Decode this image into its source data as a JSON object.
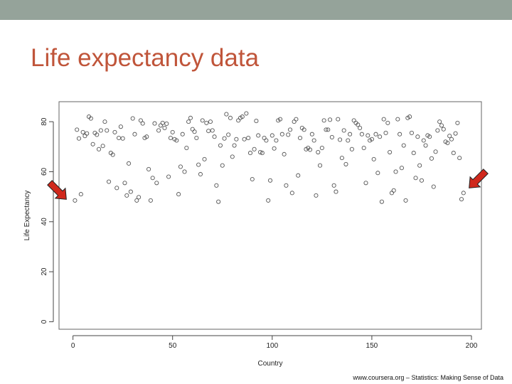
{
  "slide": {
    "title": "Life expectancy data",
    "footer": "www.coursera.org – Statistics: Making Sense of Data",
    "colors": {
      "topbar": "#95a39a",
      "title": "#c0553a",
      "arrow": "#d0281c",
      "points": "#555555"
    },
    "icons": {
      "left_marker": "red-arrow-icon",
      "right_marker": "red-arrow-icon"
    }
  },
  "chart_data": {
    "type": "scatter",
    "title": "",
    "xlabel": "Country",
    "ylabel": "Life Expectancy",
    "xlim": [
      -7,
      205
    ],
    "ylim": [
      -3,
      88
    ],
    "xticks": [
      0,
      50,
      100,
      150,
      200
    ],
    "yticks": [
      0,
      20,
      40,
      60,
      80
    ],
    "grid": false,
    "legend": "none",
    "series": [
      {
        "values": [
          [
            1,
            48.5
          ],
          [
            2,
            76.8
          ],
          [
            3,
            73.3
          ],
          [
            4,
            51
          ],
          [
            5,
            75.8
          ],
          [
            6,
            74.3
          ],
          [
            7,
            75.3
          ],
          [
            8,
            82
          ],
          [
            9,
            81.3
          ],
          [
            10,
            71
          ],
          [
            11,
            75.5
          ],
          [
            12,
            74.8
          ],
          [
            13,
            69
          ],
          [
            14,
            76.5
          ],
          [
            15,
            70.3
          ],
          [
            16,
            80
          ],
          [
            17,
            76.5
          ],
          [
            18,
            56
          ],
          [
            19,
            67.5
          ],
          [
            20,
            66.8
          ],
          [
            21,
            75.8
          ],
          [
            22,
            53.5
          ],
          [
            23,
            73.5
          ],
          [
            24,
            78
          ],
          [
            25,
            73.3
          ],
          [
            26,
            55.5
          ],
          [
            27,
            50.5
          ],
          [
            28,
            63.3
          ],
          [
            29,
            52
          ],
          [
            30,
            81.3
          ],
          [
            31,
            75
          ],
          [
            32,
            48.5
          ],
          [
            33,
            49.8
          ],
          [
            34,
            80.5
          ],
          [
            35,
            79.3
          ],
          [
            36,
            73.5
          ],
          [
            37,
            74
          ],
          [
            38,
            61
          ],
          [
            39,
            48.5
          ],
          [
            40,
            57.5
          ],
          [
            41,
            79.3
          ],
          [
            42,
            55.5
          ],
          [
            43,
            76.5
          ],
          [
            44,
            78.5
          ],
          [
            45,
            79.5
          ],
          [
            46,
            77.5
          ],
          [
            47,
            79.2
          ],
          [
            48,
            58
          ],
          [
            49,
            73.5
          ],
          [
            50,
            75.8
          ],
          [
            51,
            73
          ],
          [
            52,
            72.5
          ],
          [
            53,
            51
          ],
          [
            54,
            62
          ],
          [
            55,
            75
          ],
          [
            56,
            60
          ],
          [
            57,
            69.5
          ],
          [
            58,
            80
          ],
          [
            59,
            81.5
          ],
          [
            60,
            77
          ],
          [
            61,
            76
          ],
          [
            62,
            73.5
          ],
          [
            63,
            62.8
          ],
          [
            64,
            59
          ],
          [
            65,
            80.5
          ],
          [
            66,
            65
          ],
          [
            67,
            79.5
          ],
          [
            68,
            76.3
          ],
          [
            69,
            80
          ],
          [
            70,
            76.5
          ],
          [
            71,
            74
          ],
          [
            72,
            54.5
          ],
          [
            73,
            48
          ],
          [
            74,
            70.5
          ],
          [
            75,
            62.5
          ],
          [
            76,
            73.3
          ],
          [
            77,
            83
          ],
          [
            78,
            74.8
          ],
          [
            79,
            81.5
          ],
          [
            80,
            66
          ],
          [
            81,
            70.5
          ],
          [
            82,
            73
          ],
          [
            83,
            80.5
          ],
          [
            84,
            81.5
          ],
          [
            85,
            82
          ],
          [
            86,
            73
          ],
          [
            87,
            83.3
          ],
          [
            88,
            73.5
          ],
          [
            89,
            67.5
          ],
          [
            90,
            57
          ],
          [
            91,
            69
          ],
          [
            92,
            80.3
          ],
          [
            93,
            74.5
          ],
          [
            94,
            67.8
          ],
          [
            95,
            67.5
          ],
          [
            96,
            73.5
          ],
          [
            97,
            72.5
          ],
          [
            98,
            48.5
          ],
          [
            99,
            56.5
          ],
          [
            100,
            74.5
          ],
          [
            101,
            69.3
          ],
          [
            102,
            72.5
          ],
          [
            103,
            80.5
          ],
          [
            104,
            81
          ],
          [
            105,
            75
          ],
          [
            106,
            67
          ],
          [
            107,
            54.5
          ],
          [
            108,
            74.8
          ],
          [
            109,
            76.8
          ],
          [
            110,
            51.5
          ],
          [
            111,
            80
          ],
          [
            112,
            81
          ],
          [
            113,
            58.5
          ],
          [
            114,
            73.5
          ],
          [
            115,
            77.5
          ],
          [
            116,
            76.8
          ],
          [
            117,
            69
          ],
          [
            118,
            69.5
          ],
          [
            119,
            68.8
          ],
          [
            120,
            75
          ],
          [
            121,
            72.5
          ],
          [
            122,
            50.5
          ],
          [
            123,
            67.8
          ],
          [
            124,
            62.5
          ],
          [
            125,
            69.5
          ],
          [
            126,
            80.5
          ],
          [
            127,
            76.8
          ],
          [
            128,
            76.8
          ],
          [
            129,
            80.8
          ],
          [
            130,
            73.8
          ],
          [
            131,
            54.5
          ],
          [
            132,
            52
          ],
          [
            133,
            81
          ],
          [
            134,
            72.8
          ],
          [
            135,
            65.5
          ],
          [
            136,
            76.5
          ],
          [
            137,
            63
          ],
          [
            138,
            72.5
          ],
          [
            139,
            75
          ],
          [
            140,
            69
          ],
          [
            141,
            80.5
          ],
          [
            142,
            79.5
          ],
          [
            143,
            78.8
          ],
          [
            144,
            77.5
          ],
          [
            145,
            75
          ],
          [
            146,
            69.5
          ],
          [
            147,
            55.5
          ],
          [
            148,
            74.5
          ],
          [
            149,
            72.5
          ],
          [
            150,
            73
          ],
          [
            151,
            65
          ],
          [
            152,
            75
          ],
          [
            153,
            59.5
          ],
          [
            154,
            74
          ],
          [
            155,
            48
          ],
          [
            156,
            81
          ],
          [
            157,
            75.5
          ],
          [
            158,
            79.5
          ],
          [
            159,
            67.8
          ],
          [
            160,
            51.5
          ],
          [
            161,
            52.5
          ],
          [
            162,
            60
          ],
          [
            163,
            81
          ],
          [
            164,
            75
          ],
          [
            165,
            61.5
          ],
          [
            166,
            70.5
          ],
          [
            167,
            48.5
          ],
          [
            168,
            81.5
          ],
          [
            169,
            82
          ],
          [
            170,
            75.5
          ],
          [
            171,
            67.5
          ],
          [
            172,
            57.5
          ],
          [
            173,
            74
          ],
          [
            174,
            62.5
          ],
          [
            175,
            56.5
          ],
          [
            176,
            72.5
          ],
          [
            177,
            70.5
          ],
          [
            178,
            74.5
          ],
          [
            179,
            74
          ],
          [
            180,
            65.3
          ],
          [
            181,
            54
          ],
          [
            182,
            68
          ],
          [
            183,
            76.5
          ],
          [
            184,
            80
          ],
          [
            185,
            78.5
          ],
          [
            186,
            77
          ],
          [
            187,
            72
          ],
          [
            188,
            71.5
          ],
          [
            189,
            74.3
          ],
          [
            190,
            73
          ],
          [
            191,
            67.5
          ],
          [
            192,
            75.3
          ],
          [
            193,
            79.5
          ],
          [
            194,
            65.5
          ],
          [
            195,
            49
          ],
          [
            196,
            51.5
          ]
        ]
      }
    ]
  }
}
